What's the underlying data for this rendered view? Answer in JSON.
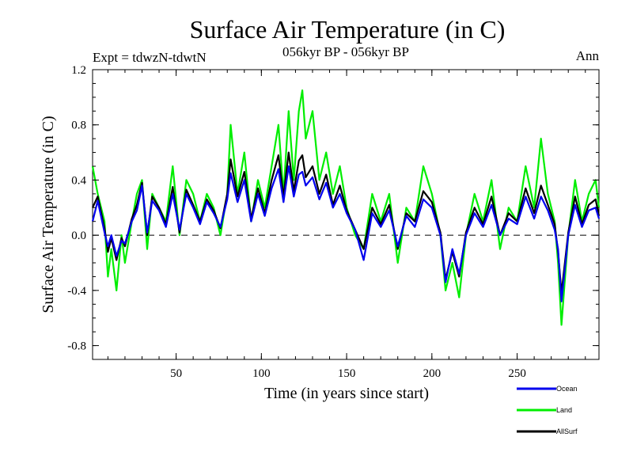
{
  "chart_data": {
    "type": "line",
    "title": "Surface Air Temperature (in C)",
    "subtitle_left": "Expt = tdwzN-tdwtN",
    "subtitle_center": "056kyr BP - 056kyr BP",
    "subtitle_right": "Ann",
    "xlabel": "Time (in years since start)",
    "ylabel": "Surface Air Temperature (in C)",
    "xlim": [
      1,
      298
    ],
    "ylim": [
      -0.9,
      1.2
    ],
    "xticks": [
      50,
      100,
      150,
      200,
      250
    ],
    "yticks": [
      -0.8,
      -0.4,
      0.0,
      0.4,
      0.8,
      1.2
    ],
    "ytick_labels": [
      "-0.8",
      "-0.4",
      "0.0",
      "0.4",
      "0.8",
      "1.2"
    ],
    "reference_line": 0.0,
    "legend": {
      "position": "bottom-right"
    },
    "series": [
      {
        "name": "Land",
        "color": "#00ee00",
        "x": [
          1,
          4,
          8,
          10,
          12,
          15,
          18,
          20,
          24,
          27,
          30,
          33,
          36,
          40,
          44,
          48,
          52,
          56,
          60,
          64,
          68,
          72,
          76,
          80,
          82,
          86,
          90,
          94,
          98,
          102,
          106,
          110,
          113,
          116,
          119,
          122,
          124,
          126,
          130,
          134,
          138,
          142,
          146,
          150,
          155,
          160,
          165,
          170,
          175,
          180,
          185,
          190,
          195,
          200,
          205,
          208,
          212,
          216,
          220,
          225,
          230,
          235,
          240,
          245,
          250,
          255,
          260,
          264,
          268,
          272,
          274,
          276,
          280,
          284,
          288,
          292,
          296,
          298
        ],
        "values": [
          0.5,
          0.3,
          0.1,
          -0.3,
          -0.1,
          -0.4,
          0.0,
          -0.2,
          0.1,
          0.3,
          0.4,
          -0.1,
          0.3,
          0.2,
          0.1,
          0.5,
          0.0,
          0.4,
          0.3,
          0.1,
          0.3,
          0.2,
          0.0,
          0.3,
          0.8,
          0.3,
          0.6,
          0.1,
          0.4,
          0.2,
          0.5,
          0.8,
          0.3,
          0.9,
          0.4,
          0.9,
          1.05,
          0.7,
          0.9,
          0.4,
          0.6,
          0.3,
          0.5,
          0.2,
          0.0,
          -0.1,
          0.3,
          0.1,
          0.3,
          -0.2,
          0.2,
          0.1,
          0.5,
          0.3,
          0.0,
          -0.4,
          -0.2,
          -0.45,
          0.0,
          0.3,
          0.1,
          0.4,
          -0.1,
          0.2,
          0.1,
          0.5,
          0.2,
          0.7,
          0.3,
          0.1,
          -0.2,
          -0.65,
          0.0,
          0.4,
          0.1,
          0.3,
          0.4,
          0.2
        ]
      },
      {
        "name": "AllSurf",
        "color": "#000000",
        "x": [
          1,
          4,
          8,
          10,
          12,
          15,
          18,
          20,
          24,
          27,
          30,
          33,
          36,
          40,
          44,
          48,
          52,
          56,
          60,
          64,
          68,
          72,
          76,
          80,
          82,
          86,
          90,
          94,
          98,
          102,
          106,
          110,
          113,
          116,
          119,
          122,
          124,
          126,
          130,
          134,
          138,
          142,
          146,
          150,
          155,
          160,
          165,
          170,
          175,
          180,
          185,
          190,
          195,
          200,
          205,
          208,
          212,
          216,
          220,
          225,
          230,
          235,
          240,
          245,
          250,
          255,
          260,
          264,
          268,
          272,
          274,
          276,
          280,
          284,
          288,
          292,
          296,
          298
        ],
        "values": [
          0.2,
          0.28,
          0.05,
          -0.12,
          -0.02,
          -0.18,
          -0.02,
          -0.08,
          0.12,
          0.22,
          0.38,
          0.0,
          0.28,
          0.2,
          0.08,
          0.35,
          0.02,
          0.33,
          0.22,
          0.1,
          0.26,
          0.18,
          0.05,
          0.3,
          0.55,
          0.28,
          0.46,
          0.12,
          0.34,
          0.16,
          0.4,
          0.58,
          0.28,
          0.6,
          0.32,
          0.54,
          0.58,
          0.42,
          0.5,
          0.3,
          0.44,
          0.22,
          0.36,
          0.18,
          0.04,
          -0.1,
          0.2,
          0.08,
          0.22,
          -0.1,
          0.16,
          0.1,
          0.32,
          0.24,
          0.02,
          -0.32,
          -0.12,
          -0.3,
          0.02,
          0.2,
          0.08,
          0.28,
          0.0,
          0.16,
          0.1,
          0.34,
          0.16,
          0.36,
          0.22,
          0.08,
          -0.12,
          -0.42,
          0.02,
          0.28,
          0.08,
          0.22,
          0.26,
          0.14
        ]
      },
      {
        "name": "Ocean",
        "color": "#0000ee",
        "x": [
          1,
          4,
          8,
          10,
          12,
          15,
          18,
          20,
          24,
          27,
          30,
          33,
          36,
          40,
          44,
          48,
          52,
          56,
          60,
          64,
          68,
          72,
          76,
          80,
          82,
          86,
          90,
          94,
          98,
          102,
          106,
          110,
          113,
          116,
          119,
          122,
          124,
          126,
          130,
          134,
          138,
          142,
          146,
          150,
          155,
          160,
          165,
          170,
          175,
          180,
          185,
          190,
          195,
          200,
          205,
          208,
          212,
          216,
          220,
          225,
          230,
          235,
          240,
          245,
          250,
          255,
          260,
          264,
          268,
          272,
          274,
          276,
          280,
          284,
          288,
          292,
          296,
          298
        ],
        "values": [
          0.1,
          0.25,
          0.02,
          -0.08,
          0.0,
          -0.15,
          -0.04,
          -0.06,
          0.1,
          0.18,
          0.36,
          0.02,
          0.25,
          0.18,
          0.06,
          0.3,
          0.04,
          0.3,
          0.2,
          0.08,
          0.24,
          0.16,
          0.06,
          0.26,
          0.45,
          0.24,
          0.4,
          0.1,
          0.3,
          0.14,
          0.34,
          0.48,
          0.24,
          0.5,
          0.28,
          0.44,
          0.46,
          0.36,
          0.42,
          0.26,
          0.38,
          0.2,
          0.3,
          0.16,
          0.04,
          -0.18,
          0.16,
          0.06,
          0.18,
          -0.08,
          0.14,
          0.06,
          0.26,
          0.2,
          0.0,
          -0.34,
          -0.1,
          -0.28,
          0.0,
          0.16,
          0.06,
          0.22,
          0.0,
          0.12,
          0.08,
          0.28,
          0.12,
          0.28,
          0.18,
          0.04,
          -0.1,
          -0.48,
          0.0,
          0.22,
          0.06,
          0.18,
          0.2,
          0.12
        ]
      }
    ],
    "legend_order": [
      "Ocean",
      "Land",
      "AllSurf"
    ]
  }
}
